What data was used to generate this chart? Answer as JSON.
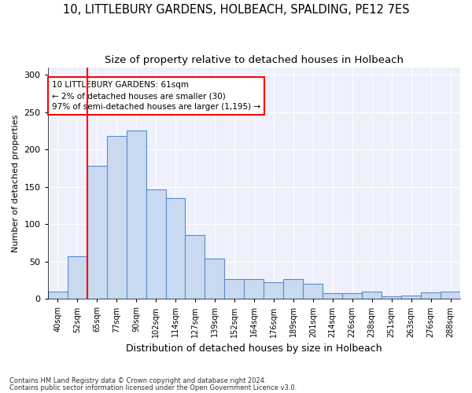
{
  "title1": "10, LITTLEBURY GARDENS, HOLBEACH, SPALDING, PE12 7ES",
  "title2": "Size of property relative to detached houses in Holbeach",
  "xlabel": "Distribution of detached houses by size in Holbeach",
  "ylabel": "Number of detached properties",
  "categories": [
    "40sqm",
    "52sqm",
    "65sqm",
    "77sqm",
    "90sqm",
    "102sqm",
    "114sqm",
    "127sqm",
    "139sqm",
    "152sqm",
    "164sqm",
    "176sqm",
    "189sqm",
    "201sqm",
    "214sqm",
    "226sqm",
    "238sqm",
    "251sqm",
    "263sqm",
    "276sqm",
    "288sqm"
  ],
  "bar_heights": [
    10,
    57,
    178,
    218,
    225,
    147,
    135,
    85,
    54,
    27,
    27,
    22,
    27,
    20,
    8,
    8,
    10,
    3,
    5,
    9,
    10
  ],
  "bar_color": "#c9d9f0",
  "bar_edge_color": "#5b8bd0",
  "annotation_text": "10 LITTLEBURY GARDENS: 61sqm\n← 2% of detached houses are smaller (30)\n97% of semi-detached houses are larger (1,195) →",
  "vline_index": 2,
  "ylim": [
    0,
    310
  ],
  "yticks": [
    0,
    50,
    100,
    150,
    200,
    250,
    300
  ],
  "footer1": "Contains HM Land Registry data © Crown copyright and database right 2024.",
  "footer2": "Contains public sector information licensed under the Open Government Licence v3.0.",
  "bg_color": "#eef1fb",
  "grid_color": "#ffffff",
  "title1_fontsize": 10.5,
  "title2_fontsize": 9.5,
  "ylabel_fontsize": 8,
  "xlabel_fontsize": 9
}
